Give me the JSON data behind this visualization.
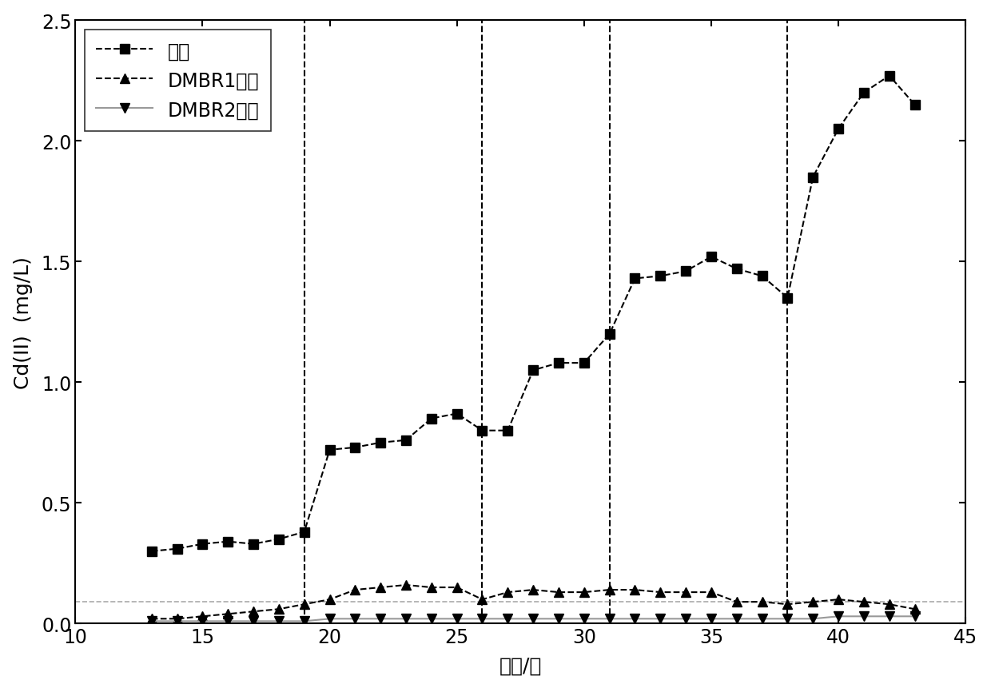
{
  "inlet_x": [
    13,
    14,
    15,
    16,
    17,
    18,
    19,
    20,
    21,
    22,
    23,
    24,
    25,
    26,
    27,
    28,
    29,
    30,
    31,
    32,
    33,
    34,
    35,
    36,
    37,
    38,
    39,
    40,
    41,
    42,
    43
  ],
  "inlet_y": [
    0.3,
    0.31,
    0.33,
    0.34,
    0.33,
    0.35,
    0.38,
    0.72,
    0.73,
    0.75,
    0.76,
    0.85,
    0.87,
    0.8,
    0.8,
    1.05,
    1.08,
    1.08,
    1.2,
    1.43,
    1.44,
    1.46,
    1.52,
    1.47,
    1.44,
    1.35,
    1.85,
    2.05,
    2.2,
    2.27,
    2.15
  ],
  "dmbr1_x": [
    13,
    14,
    15,
    16,
    17,
    18,
    19,
    20,
    21,
    22,
    23,
    24,
    25,
    26,
    27,
    28,
    29,
    30,
    31,
    32,
    33,
    34,
    35,
    36,
    37,
    38,
    39,
    40,
    41,
    42,
    43
  ],
  "dmbr1_y": [
    0.02,
    0.02,
    0.03,
    0.04,
    0.05,
    0.06,
    0.08,
    0.1,
    0.14,
    0.15,
    0.16,
    0.15,
    0.15,
    0.1,
    0.13,
    0.14,
    0.13,
    0.13,
    0.14,
    0.14,
    0.13,
    0.13,
    0.13,
    0.09,
    0.09,
    0.08,
    0.09,
    0.1,
    0.09,
    0.08,
    0.06
  ],
  "dmbr2_x": [
    13,
    14,
    15,
    16,
    17,
    18,
    19,
    20,
    21,
    22,
    23,
    24,
    25,
    26,
    27,
    28,
    29,
    30,
    31,
    32,
    33,
    34,
    35,
    36,
    37,
    38,
    39,
    40,
    41,
    42,
    43
  ],
  "dmbr2_y": [
    0.01,
    0.01,
    0.01,
    0.01,
    0.01,
    0.01,
    0.01,
    0.02,
    0.02,
    0.02,
    0.02,
    0.02,
    0.02,
    0.02,
    0.02,
    0.02,
    0.02,
    0.02,
    0.02,
    0.02,
    0.02,
    0.02,
    0.02,
    0.02,
    0.02,
    0.02,
    0.02,
    0.03,
    0.03,
    0.03,
    0.03
  ],
  "vlines": [
    19,
    26,
    31,
    38
  ],
  "hline_y": 0.09,
  "xlim": [
    10,
    45
  ],
  "ylim": [
    0,
    2.5
  ],
  "xticks": [
    10,
    15,
    20,
    25,
    30,
    35,
    40,
    45
  ],
  "yticks": [
    0.0,
    0.5,
    1.0,
    1.5,
    2.0,
    2.5
  ],
  "xlabel": "时间/天",
  "ylabel": "Cd(II)  (mg/L)",
  "legend_label_inlet": "进水",
  "legend_label_dmbr1": "DMBR1出水",
  "legend_label_dmbr2": "DMBR2出水",
  "color_black": "#000000",
  "color_gray": "#999999",
  "color_hline": "#aaaaaa",
  "marker_inlet": "s",
  "marker_dmbr1": "^",
  "marker_dmbr2": "v",
  "markersize": 9,
  "linewidth": 1.5,
  "dpi": 100,
  "figwidth": 12.4,
  "figheight": 8.62
}
